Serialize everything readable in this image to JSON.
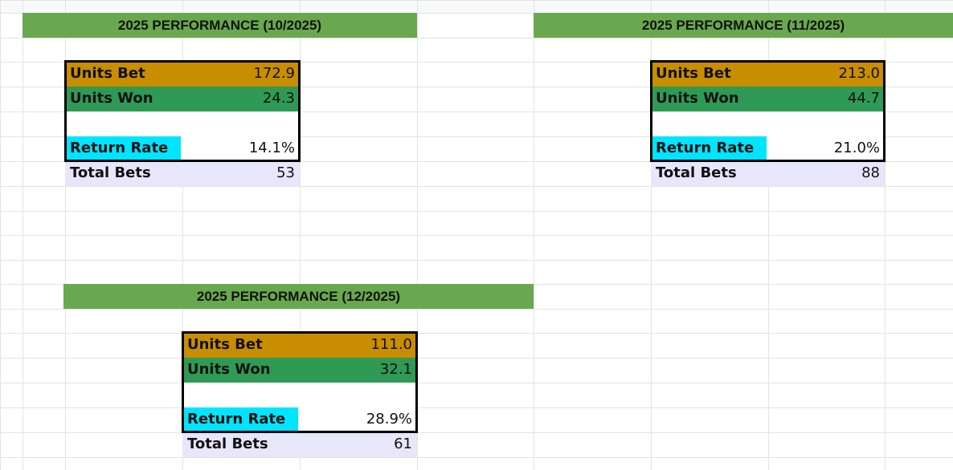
{
  "blocks": [
    {
      "title": "2025 PERFORMANCE (10/2025)",
      "rows": [
        {
          "label": "Units Bet",
          "value": "172.9"
        },
        {
          "label": "Units Won",
          "value": "24.3"
        },
        {
          "label": "Return Rate",
          "value": "14.1%"
        },
        {
          "label": "Total Bets",
          "value": "53"
        }
      ]
    },
    {
      "title": "2025 PERFORMANCE (11/2025)",
      "rows": [
        {
          "label": "Units Bet",
          "value": "213.0"
        },
        {
          "label": "Units Won",
          "value": "44.7"
        },
        {
          "label": "Return Rate",
          "value": "21.0%"
        },
        {
          "label": "Total Bets",
          "value": "88"
        }
      ]
    },
    {
      "title": "2025 PERFORMANCE (12/2025)",
      "rows": [
        {
          "label": "Units Bet",
          "value": "111.0"
        },
        {
          "label": "Units Won",
          "value": "32.1"
        },
        {
          "label": "Return Rate",
          "value": "28.9%"
        },
        {
          "label": "Total Bets",
          "value": "61"
        }
      ]
    }
  ]
}
